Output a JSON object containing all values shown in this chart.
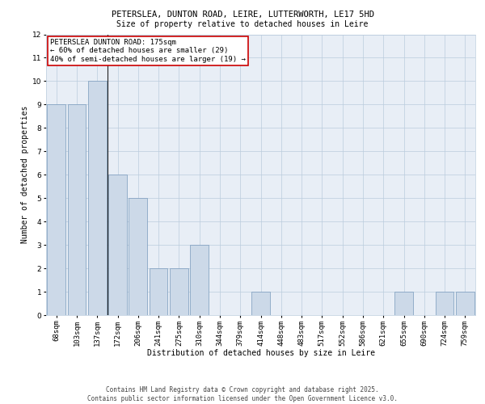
{
  "title_line1": "PETERSLEA, DUNTON ROAD, LEIRE, LUTTERWORTH, LE17 5HD",
  "title_line2": "Size of property relative to detached houses in Leire",
  "xlabel": "Distribution of detached houses by size in Leire",
  "ylabel": "Number of detached properties",
  "categories": [
    "68sqm",
    "103sqm",
    "137sqm",
    "172sqm",
    "206sqm",
    "241sqm",
    "275sqm",
    "310sqm",
    "344sqm",
    "379sqm",
    "414sqm",
    "448sqm",
    "483sqm",
    "517sqm",
    "552sqm",
    "586sqm",
    "621sqm",
    "655sqm",
    "690sqm",
    "724sqm",
    "759sqm"
  ],
  "values": [
    9,
    9,
    10,
    6,
    5,
    2,
    2,
    3,
    0,
    0,
    1,
    0,
    0,
    0,
    0,
    0,
    0,
    1,
    0,
    1,
    1
  ],
  "bar_color": "#ccd9e8",
  "bar_edge_color": "#7799bb",
  "highlight_bar_index": 3,
  "highlight_line_color": "#222222",
  "annotation_box_text": "PETERSLEA DUNTON ROAD: 175sqm\n← 60% of detached houses are smaller (29)\n40% of semi-detached houses are larger (19) →",
  "annotation_edge_color": "#cc0000",
  "ylim": [
    0,
    12
  ],
  "yticks": [
    0,
    1,
    2,
    3,
    4,
    5,
    6,
    7,
    8,
    9,
    10,
    11,
    12
  ],
  "grid_color": "#bbccdd",
  "bg_color": "#e8eef6",
  "footer_text": "Contains HM Land Registry data © Crown copyright and database right 2025.\nContains public sector information licensed under the Open Government Licence v3.0.",
  "title_fontsize": 7.5,
  "subtitle_fontsize": 7.0,
  "axis_label_fontsize": 7.0,
  "tick_fontsize": 6.5,
  "annotation_fontsize": 6.5,
  "footer_fontsize": 5.5
}
